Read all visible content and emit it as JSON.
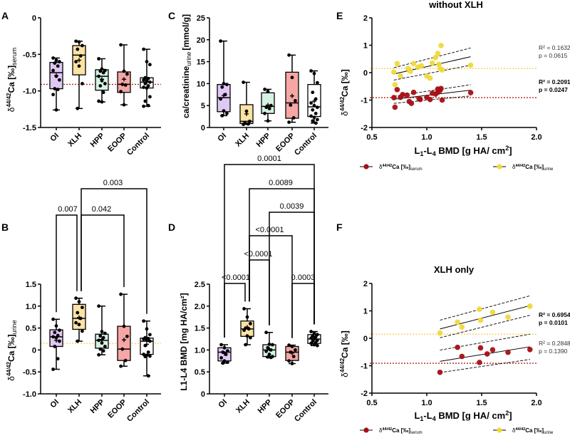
{
  "colors": {
    "OI": "#e0c8f5",
    "XLH": "#fbe3a4",
    "HPP": "#d5f2e3",
    "EOOP": "#f6a6a4",
    "Control": "#ffffff",
    "serum": "#a50f15",
    "urine": "#f0d93a",
    "serum_ref": "#b22222",
    "urine_ref": "#f2d35a"
  },
  "chart_data": [
    {
      "id": "A",
      "panel_label": "A",
      "type": "box",
      "title": "",
      "ylabel_main": "δ44/42Ca [‰]",
      "ylabel_sub": "serum",
      "categories": [
        "OI",
        "XLH",
        "HPP",
        "EOOP",
        "Control"
      ],
      "ylim": [
        -1.5,
        0
      ],
      "yticks": [
        0,
        -0.5,
        -1.0,
        -1.5
      ],
      "ytick_labels": [
        "0",
        "-0.5",
        "-1.0",
        "-1.5"
      ],
      "reference_line": {
        "value": -0.91,
        "color": "serum_ref"
      },
      "boxes": [
        {
          "min": -1.26,
          "q1": -0.97,
          "median": -0.75,
          "q3": -0.61,
          "max": -0.55,
          "mean": -0.79,
          "points": [
            -0.55,
            -0.58,
            -0.6,
            -0.62,
            -0.66,
            -0.72,
            -0.8,
            -0.85,
            -0.97,
            -0.98,
            -1.05,
            -1.26
          ]
        },
        {
          "min": -1.24,
          "q1": -0.78,
          "median": -0.51,
          "q3": -0.38,
          "max": -0.32,
          "mean": -0.58,
          "points": [
            -0.32,
            -0.33,
            -0.38,
            -0.43,
            -0.52,
            -0.6,
            -0.66,
            -0.9,
            -1.24
          ]
        },
        {
          "min": -1.15,
          "q1": -0.99,
          "median": -0.8,
          "q3": -0.71,
          "max": -0.56,
          "mean": -0.84,
          "points": [
            -0.56,
            -0.7,
            -0.72,
            -0.73,
            -0.75,
            -0.8,
            -0.86,
            -0.9,
            -0.93,
            -1.02,
            -1.14,
            -1.15
          ]
        },
        {
          "min": -1.19,
          "q1": -1.02,
          "median": -0.91,
          "q3": -0.74,
          "max": -0.37,
          "mean": -0.84,
          "points": [
            -0.37,
            -0.73,
            -0.77,
            -0.91,
            -0.92,
            -1.01,
            -1.19
          ]
        },
        {
          "min": -1.21,
          "q1": -0.96,
          "median": -0.88,
          "q3": -0.82,
          "max": -0.43,
          "mean": -0.88,
          "points": [
            -0.43,
            -0.6,
            -0.64,
            -0.82,
            -0.83,
            -0.85,
            -0.86,
            -0.88,
            -0.9,
            -0.93,
            -0.95,
            -0.96,
            -1.08,
            -1.14,
            -1.2,
            -1.21
          ]
        }
      ]
    },
    {
      "id": "B",
      "panel_label": "B",
      "type": "box",
      "title": "",
      "ylabel_main": "δ44/42Ca [‰]",
      "ylabel_sub": "urine",
      "categories": [
        "OI",
        "XLH",
        "HPP",
        "EOOP",
        "Control"
      ],
      "ylim": [
        -1.0,
        1.5
      ],
      "yticks": [
        1.5,
        1.0,
        0.5,
        0,
        -0.5,
        -1.0
      ],
      "ytick_labels": [
        "1.5",
        "1.0",
        "0.5",
        "0",
        "-0.5",
        "-1.0"
      ],
      "reference_line": {
        "value": 0.15,
        "color": "urine_ref"
      },
      "boxes": [
        {
          "min": -0.44,
          "q1": 0.08,
          "median": 0.3,
          "q3": 0.46,
          "max": 0.7,
          "mean": 0.22,
          "points": [
            0.7,
            0.55,
            0.45,
            0.4,
            0.33,
            0.3,
            0.28,
            0.2,
            0.08,
            -0.2,
            -0.44
          ]
        },
        {
          "min": 0.2,
          "q1": 0.47,
          "median": 0.72,
          "q3": 1.04,
          "max": 1.18,
          "mean": 0.74,
          "points": [
            1.18,
            1.1,
            0.97,
            0.85,
            0.72,
            0.62,
            0.58,
            0.43,
            0.2
          ]
        },
        {
          "min": -0.11,
          "q1": 0.04,
          "median": 0.22,
          "q3": 0.36,
          "max": 1.0,
          "mean": 0.24,
          "points": [
            1.0,
            0.42,
            0.38,
            0.32,
            0.28,
            0.22,
            0.16,
            0.08,
            0.02,
            -0.02,
            -0.11
          ]
        },
        {
          "min": -0.37,
          "q1": -0.24,
          "median": 0.02,
          "q3": 0.54,
          "max": 1.27,
          "mean": 0.23,
          "points": [
            1.27,
            0.54,
            0.31,
            0.02,
            -0.24,
            -0.37
          ]
        },
        {
          "min": -0.59,
          "q1": -0.1,
          "median": 0.2,
          "q3": 0.27,
          "max": 0.66,
          "mean": 0.13,
          "points": [
            0.66,
            0.48,
            0.35,
            0.28,
            0.26,
            0.25,
            0.22,
            0.2,
            0.1,
            -0.05,
            -0.1,
            -0.12,
            -0.14,
            -0.15,
            -0.59
          ]
        }
      ],
      "comparisons": [
        {
          "from": 0,
          "to": 1,
          "label": "0.007"
        },
        {
          "from": 1,
          "to": 3,
          "label": "0.042"
        },
        {
          "from": 1,
          "to": 4,
          "label": "0.003"
        }
      ]
    },
    {
      "id": "C",
      "panel_label": "C",
      "type": "box",
      "title": "",
      "ylabel_main": "ca/creatinine",
      "ylabel_sub": "urine",
      "ylabel_unit": "[mmol/g]",
      "categories": [
        "OI",
        "XLH",
        "HPP",
        "EOOP",
        "Control"
      ],
      "ylim": [
        0,
        25
      ],
      "yticks": [
        25,
        20,
        15,
        10,
        5,
        0
      ],
      "ytick_labels": [
        "25",
        "20",
        "15",
        "10",
        "5",
        "0"
      ],
      "boxes": [
        {
          "min": 2.7,
          "q1": 3.6,
          "median": 6.8,
          "q3": 9.8,
          "max": 19.7,
          "mean": 7.3,
          "points": [
            19.7,
            10.0,
            9.8,
            9.2,
            7.5,
            6.5,
            3.8,
            3.2,
            2.7
          ]
        },
        {
          "min": 0.7,
          "q1": 0.9,
          "median": 1.4,
          "q3": 5.2,
          "max": 10.3,
          "mean": 3.1,
          "points": [
            10.3,
            3.7,
            1.4,
            1.0,
            0.8,
            0.7
          ]
        },
        {
          "min": 1.5,
          "q1": 3.2,
          "median": 4.8,
          "q3": 7.9,
          "max": 8.7,
          "mean": 5.1,
          "points": [
            8.7,
            8.2,
            5.0,
            4.6,
            4.3,
            3.2,
            1.5
          ]
        },
        {
          "min": 1.2,
          "q1": 2.1,
          "median": 5.6,
          "q3": 12.6,
          "max": 16.5,
          "mean": 7.2,
          "points": [
            16.5,
            11.4,
            6.1,
            5.1,
            2.2,
            1.2
          ]
        },
        {
          "min": 1.0,
          "q1": 2.5,
          "median": 4.7,
          "q3": 9.8,
          "max": 12.9,
          "mean": 6.0,
          "points": [
            12.9,
            12.3,
            10.2,
            8.0,
            6.5,
            5.6,
            5.0,
            4.6,
            4.0,
            3.2,
            2.6,
            2.3,
            1.8,
            1.5,
            1.0
          ]
        }
      ]
    },
    {
      "id": "D",
      "panel_label": "D",
      "type": "box",
      "title": "",
      "ylabel_main": "L1-L4 BMD [mg HA/cm²]",
      "categories": [
        "OI",
        "XLH",
        "HPP",
        "EOOP",
        "Control"
      ],
      "ylim": [
        0,
        2.5
      ],
      "yticks": [
        2.5,
        2.0,
        1.5,
        1.0,
        0.5,
        0
      ],
      "ytick_labels": [
        "2.5",
        "2.0",
        "1.5",
        "1.0",
        "0.5",
        "0"
      ],
      "boxes": [
        {
          "min": 0.7,
          "q1": 0.75,
          "median": 0.95,
          "q3": 1.05,
          "max": 1.12,
          "mean": 0.92,
          "points": [
            1.12,
            1.05,
            0.98,
            0.95,
            0.9,
            0.82,
            0.75,
            0.72,
            0.7
          ]
        },
        {
          "min": 1.12,
          "q1": 1.31,
          "median": 1.48,
          "q3": 1.66,
          "max": 1.94,
          "mean": 1.52,
          "points": [
            1.94,
            1.75,
            1.6,
            1.5,
            1.48,
            1.45,
            1.32,
            1.28,
            1.12
          ]
        },
        {
          "min": 0.83,
          "q1": 0.85,
          "median": 1.0,
          "q3": 1.12,
          "max": 1.4,
          "mean": 1.02,
          "points": [
            1.4,
            1.13,
            1.12,
            1.05,
            1.0,
            0.97,
            0.9,
            0.85,
            0.84,
            0.83
          ]
        },
        {
          "min": 0.69,
          "q1": 0.76,
          "median": 0.95,
          "q3": 1.08,
          "max": 1.11,
          "mean": 0.93,
          "points": [
            1.11,
            1.08,
            1.0,
            0.95,
            0.85,
            0.75,
            0.69
          ]
        },
        {
          "min": 1.1,
          "q1": 1.15,
          "median": 1.25,
          "q3": 1.35,
          "max": 1.42,
          "mean": 1.26,
          "points": [
            1.42,
            1.38,
            1.35,
            1.32,
            1.3,
            1.27,
            1.25,
            1.22,
            1.2,
            1.17,
            1.15,
            1.12,
            1.1
          ]
        }
      ],
      "comparisons": [
        {
          "from": 0,
          "to": 1,
          "label": "<0.0001"
        },
        {
          "from": 1,
          "to": 2,
          "label": "<0.0001"
        },
        {
          "from": 1,
          "to": 3,
          "label": "<0.0001"
        },
        {
          "from": 3,
          "to": 4,
          "label": "0.0003"
        },
        {
          "from": 2,
          "to": 4,
          "label": "0.0039"
        },
        {
          "from": 1,
          "to": 4,
          "label": "0.0089"
        },
        {
          "from": 0,
          "to": 4,
          "label": "0.0001"
        }
      ]
    },
    {
      "id": "E",
      "panel_label": "E",
      "type": "scatter",
      "title": "without XLH",
      "xlabel": "L1-L4 BMD [g HA/ cm²]",
      "ylabel": "δ44/42Ca [‰]",
      "xlim": [
        0.5,
        2.0
      ],
      "ylim": [
        -2,
        2
      ],
      "xticks": [
        0.5,
        1.0,
        1.5,
        2.0
      ],
      "xtick_labels": [
        "0.5",
        "1.0",
        "1.5",
        "2.0"
      ],
      "yticks": [
        2,
        1,
        0,
        -1,
        -2
      ],
      "ytick_labels": [
        "2",
        "1",
        "0",
        "-1",
        "-2"
      ],
      "reference_lines": [
        {
          "value": 0.15,
          "series": "urine"
        },
        {
          "value": -0.91,
          "series": "serum"
        }
      ],
      "series": [
        {
          "name": "δ44/42Ca [‰] serum",
          "key": "serum",
          "points": [
            [
              0.7,
              -0.91
            ],
            [
              0.71,
              -1.26
            ],
            [
              0.73,
              -0.62
            ],
            [
              0.76,
              -0.9
            ],
            [
              0.78,
              -0.8
            ],
            [
              0.82,
              -0.82
            ],
            [
              0.84,
              -1.05
            ],
            [
              0.86,
              -1.12
            ],
            [
              0.88,
              -0.72
            ],
            [
              0.93,
              -0.95
            ],
            [
              0.94,
              -0.98
            ],
            [
              1.0,
              -0.9
            ],
            [
              1.03,
              -0.98
            ],
            [
              1.05,
              -0.75
            ],
            [
              1.08,
              -0.78
            ],
            [
              1.1,
              -0.72
            ],
            [
              1.1,
              -0.6
            ],
            [
              1.12,
              -0.65
            ],
            [
              1.13,
              -0.58
            ],
            [
              1.14,
              -1.0
            ],
            [
              1.4,
              -0.73
            ]
          ],
          "fit": {
            "x": [
              0.7,
              1.4
            ],
            "y": [
              -0.97,
              -0.64
            ],
            "ci_lower": [
              -1.12,
              -0.85
            ],
            "ci_upper": [
              -0.86,
              -0.44
            ]
          },
          "r2": "R² = 0.2091",
          "p": "p = 0.0247",
          "stat_bold": true
        },
        {
          "name": "δ44/42Ca [‰] urine",
          "key": "urine",
          "points": [
            [
              0.7,
              0.02
            ],
            [
              0.71,
              -0.44
            ],
            [
              0.73,
              0.33
            ],
            [
              0.76,
              -0.12
            ],
            [
              0.83,
              0.15
            ],
            [
              0.85,
              0.05
            ],
            [
              0.88,
              0.33
            ],
            [
              0.92,
              0.2
            ],
            [
              0.95,
              0.25
            ],
            [
              1.0,
              -0.12
            ],
            [
              1.03,
              -0.2
            ],
            [
              1.05,
              0.35
            ],
            [
              1.08,
              0.55
            ],
            [
              1.1,
              0.7
            ],
            [
              1.11,
              0.3
            ],
            [
              1.12,
              0.15
            ],
            [
              1.13,
              0.99
            ],
            [
              1.14,
              0.1
            ],
            [
              1.4,
              0.27
            ]
          ],
          "fit": {
            "x": [
              0.7,
              1.4
            ],
            "y": [
              -0.05,
              0.58
            ],
            "ci_lower": [
              -0.27,
              0.27
            ],
            "ci_upper": [
              0.18,
              0.9
            ]
          },
          "r2": "R² = 0.1632",
          "p": "p = 0.0615",
          "stat_bold": false
        }
      ]
    },
    {
      "id": "F",
      "panel_label": "F",
      "type": "scatter",
      "title": "XLH only",
      "xlabel": "L1-L4 BMD [g HA/ cm²]",
      "ylabel": "δ44/42Ca [‰]",
      "xlim": [
        0.5,
        2.0
      ],
      "ylim": [
        -2,
        2
      ],
      "xticks": [
        0.5,
        1.0,
        1.5,
        2.0
      ],
      "xtick_labels": [
        "0.5",
        "1.0",
        "1.5",
        "2.0"
      ],
      "yticks": [
        2,
        1,
        0,
        -1,
        -2
      ],
      "ytick_labels": [
        "2",
        "1",
        "0",
        "-1",
        "-2"
      ],
      "reference_lines": [
        {
          "value": 0.15,
          "series": "urine"
        },
        {
          "value": -0.91,
          "series": "serum"
        }
      ],
      "series": [
        {
          "name": "δ44/42Ca [‰] serum",
          "key": "serum",
          "points": [
            [
              1.12,
              -1.24
            ],
            [
              1.28,
              -0.33
            ],
            [
              1.32,
              -0.66
            ],
            [
              1.48,
              -0.88
            ],
            [
              1.49,
              -0.35
            ],
            [
              1.55,
              -0.57
            ],
            [
              1.6,
              -0.42
            ],
            [
              1.74,
              -0.51
            ],
            [
              1.94,
              -0.41
            ]
          ],
          "fit": {
            "x": [
              1.12,
              1.94
            ],
            "y": [
              -0.84,
              -0.31
            ],
            "ci_lower": [
              -1.25,
              -0.77
            ],
            "ci_upper": [
              -0.43,
              0.15
            ]
          },
          "r2": "R² = 0.2848",
          "p": "p = 0.1390",
          "stat_bold": false
        },
        {
          "name": "δ44/42Ca [‰] urine",
          "key": "urine",
          "points": [
            [
              1.12,
              0.19
            ],
            [
              1.28,
              0.59
            ],
            [
              1.32,
              0.41
            ],
            [
              1.48,
              1.06
            ],
            [
              1.49,
              0.66
            ],
            [
              1.6,
              0.95
            ],
            [
              1.74,
              0.77
            ],
            [
              1.94,
              1.17
            ]
          ],
          "fit": {
            "x": [
              1.12,
              1.94
            ],
            "y": [
              0.34,
              1.19
            ],
            "ci_lower": [
              0.02,
              0.84
            ],
            "ci_upper": [
              0.66,
              1.55
            ]
          },
          "r2": "R² = 0.6954",
          "p": "p = 0.0101",
          "stat_bold": true
        }
      ]
    }
  ],
  "legend": {
    "serum": {
      "prefix": "δ",
      "sup": "44/42",
      "main": "Ca [‰]",
      "sub": "serum"
    },
    "urine": {
      "prefix": "δ",
      "sup": "44/42",
      "main": "Ca [‰]",
      "sub": "urine"
    }
  }
}
